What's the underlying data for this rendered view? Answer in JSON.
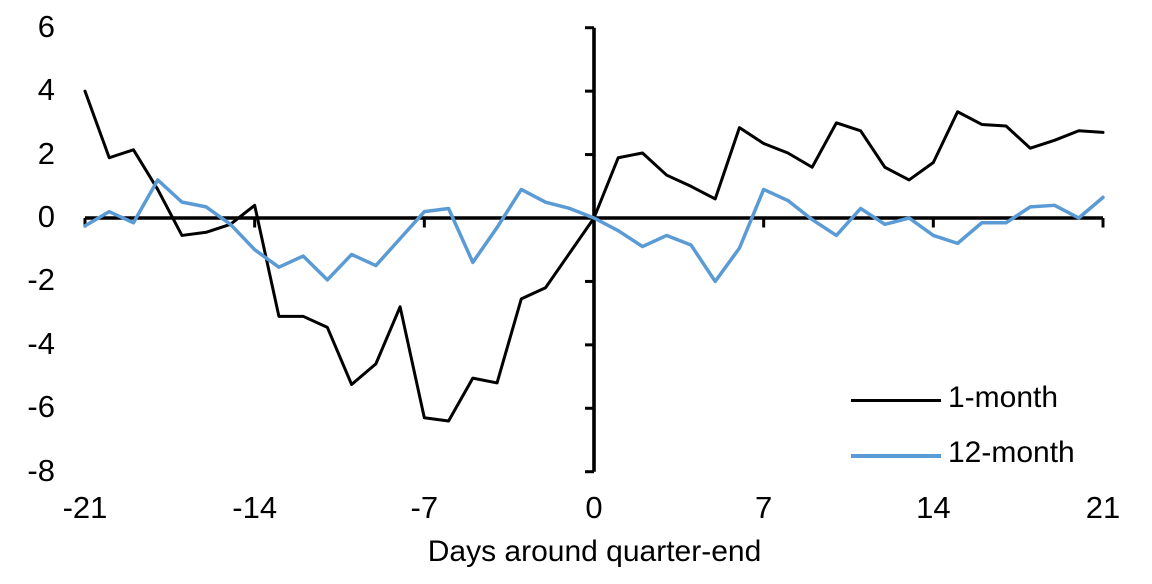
{
  "chart_data": {
    "type": "line",
    "title": "",
    "xlabel": "Days around quarter-end",
    "ylabel": "",
    "xlim": [
      -21,
      21
    ],
    "ylim": [
      -8,
      6
    ],
    "grid": false,
    "legend_position": "inside-bottom-right",
    "x_ticks": [
      -21,
      -14,
      -7,
      0,
      7,
      14,
      21
    ],
    "y_ticks": [
      6,
      4,
      2,
      0,
      -2,
      -4,
      -6,
      -8
    ],
    "x": [
      -21,
      -20,
      -19,
      -18,
      -17,
      -16,
      -15,
      -14,
      -13,
      -12,
      -11,
      -10,
      -9,
      -8,
      -7,
      -6,
      -5,
      -4,
      -3,
      -2,
      -1,
      0,
      1,
      2,
      3,
      4,
      5,
      6,
      7,
      8,
      9,
      10,
      11,
      12,
      13,
      14,
      15,
      16,
      17,
      18,
      19,
      20,
      21
    ],
    "series": [
      {
        "name": "1-month",
        "color": "#000000",
        "stroke_width": 3,
        "values": [
          4.0,
          1.9,
          2.15,
          0.9,
          -0.55,
          -0.45,
          -0.2,
          0.4,
          -3.1,
          -3.1,
          -3.45,
          -5.25,
          -4.6,
          -2.8,
          -6.3,
          -6.4,
          -5.05,
          -5.2,
          -2.55,
          -2.2,
          -1.1,
          0.0,
          1.9,
          2.05,
          1.35,
          1.0,
          0.6,
          2.85,
          2.35,
          2.05,
          1.6,
          3.0,
          2.75,
          1.6,
          1.2,
          1.75,
          3.35,
          2.95,
          2.9,
          2.2,
          2.45,
          2.75,
          2.7
        ]
      },
      {
        "name": "12-month",
        "color": "#5B9BD5",
        "stroke_width": 3.5,
        "values": [
          -0.25,
          0.2,
          -0.15,
          1.2,
          0.5,
          0.35,
          -0.2,
          -1.0,
          -1.55,
          -1.2,
          -1.95,
          -1.15,
          -1.5,
          -0.65,
          0.2,
          0.3,
          -1.4,
          -0.3,
          0.9,
          0.5,
          0.3,
          0.0,
          -0.4,
          -0.9,
          -0.55,
          -0.85,
          -2.0,
          -0.95,
          0.9,
          0.55,
          -0.05,
          -0.55,
          0.3,
          -0.2,
          0.0,
          -0.55,
          -0.8,
          -0.15,
          -0.15,
          0.35,
          0.4,
          0.0,
          0.65
        ]
      }
    ],
    "axis_color": "#000000"
  }
}
